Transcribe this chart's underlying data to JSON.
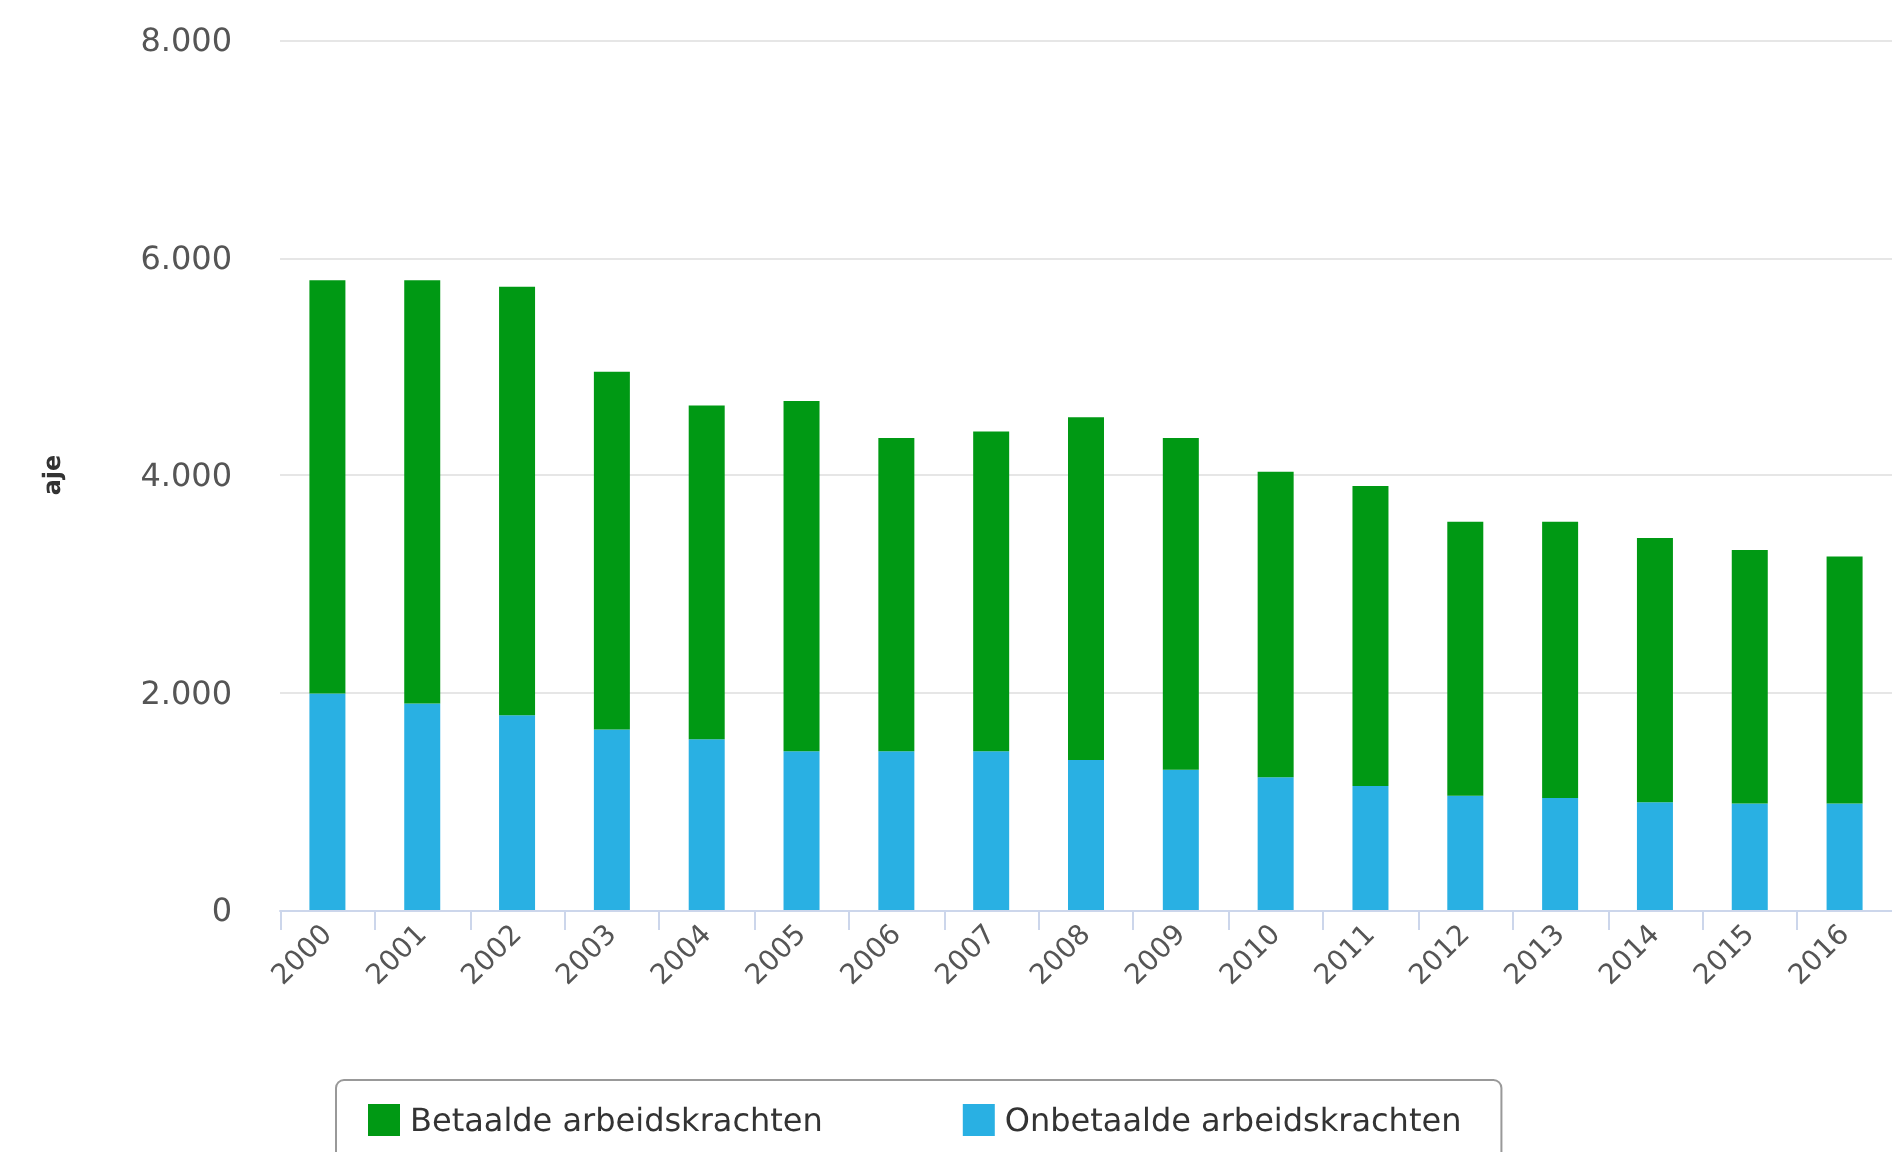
{
  "chart_data": {
    "type": "bar",
    "stacked": true,
    "ylabel": "aje",
    "categories": [
      "2000",
      "2001",
      "2002",
      "2003",
      "2004",
      "2005",
      "2006",
      "2007",
      "2008",
      "2009",
      "2010",
      "2011",
      "2012",
      "2013",
      "2014",
      "2015",
      "2016"
    ],
    "series": [
      {
        "name": "Onbetaalde arbeidskrachten",
        "color": "#29b0e3",
        "values": [
          1990,
          1900,
          1790,
          1660,
          1570,
          1460,
          1460,
          1460,
          1380,
          1290,
          1220,
          1140,
          1050,
          1030,
          990,
          980,
          980
        ]
      },
      {
        "name": "Betaalde arbeidskrachten",
        "color": "#009914",
        "values": [
          3800,
          3890,
          3940,
          3290,
          3070,
          3220,
          2880,
          2940,
          3150,
          3050,
          2810,
          2760,
          2520,
          2540,
          2430,
          2330,
          2270
        ]
      }
    ],
    "ylim": [
      0,
      8000
    ],
    "yticks": [
      {
        "value": 0,
        "label": "0"
      },
      {
        "value": 2000,
        "label": "2.000"
      },
      {
        "value": 4000,
        "label": "4.000"
      },
      {
        "value": 6000,
        "label": "6.000"
      },
      {
        "value": 8000,
        "label": "8.000"
      }
    ],
    "grid": "y",
    "legend": "bottom"
  }
}
